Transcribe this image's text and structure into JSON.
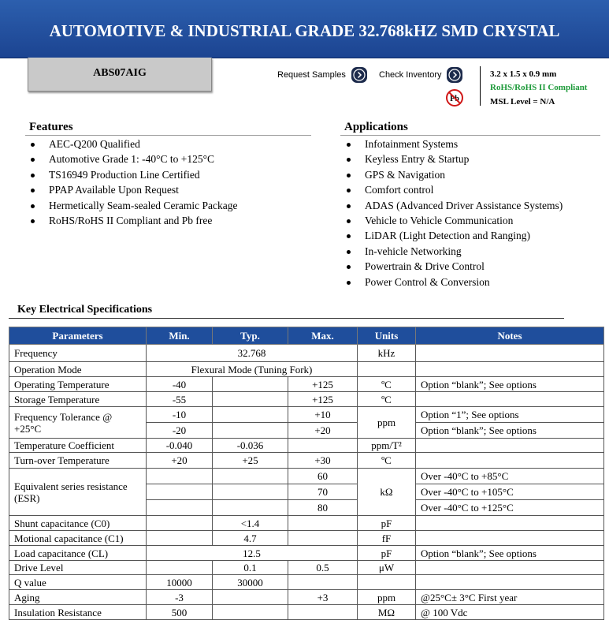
{
  "header": {
    "title": "AUTOMOTIVE & INDUSTRIAL GRADE 32.768kHZ SMD CRYSTAL"
  },
  "part_number": "ABS07AIG",
  "actions": {
    "request_samples": "Request Samples",
    "check_inventory": "Check Inventory"
  },
  "pb_icon": "Pb",
  "specs_summary": [
    "3.2 x 1.5 x 0.9 mm",
    "RoHS/RoHS II Compliant",
    "MSL Level = N/A"
  ],
  "features": {
    "title": "Features",
    "items": [
      "AEC-Q200 Qualified",
      "Automotive Grade 1: -40°C to +125°C",
      "TS16949 Production Line Certified",
      "PPAP Available Upon Request",
      "Hermetically Seam-sealed Ceramic Package",
      "RoHS/RoHS II Compliant and Pb free"
    ]
  },
  "applications": {
    "title": "Applications",
    "items": [
      "Infotainment Systems",
      "Keyless Entry & Startup",
      "GPS & Navigation",
      "Comfort control",
      "ADAS (Advanced Driver Assistance Systems)",
      "Vehicle to Vehicle Communication",
      "LiDAR (Light Detection and Ranging)",
      "In-vehicle Networking",
      "Powertrain & Drive Control",
      "Power Control & Conversion"
    ]
  },
  "spec_table": {
    "title": "Key Electrical Specifications",
    "columns": [
      "Parameters",
      "Min.",
      "Typ.",
      "Max.",
      "Units",
      "Notes"
    ],
    "rows": [
      {
        "parameter": "Frequency",
        "typ": "32.768",
        "unit": "kHz"
      },
      {
        "parameter": "Operation Mode",
        "typ": "Flexural Mode (Tuning Fork)"
      },
      {
        "parameter": "Operating Temperature",
        "min": "-40",
        "max": "+125",
        "unit": "ºC",
        "note": "Option “blank”; See options"
      },
      {
        "parameter": "Storage Temperature",
        "min": "-55",
        "max": "+125",
        "unit": "ºC"
      },
      {
        "parameter": "Frequency Tolerance @ +25°C",
        "unit": "ppm",
        "lines": [
          {
            "min": "-10",
            "max": "+10",
            "note": "Option “1”; See options"
          },
          {
            "min": "-20",
            "max": "+20",
            "note": "Option “blank”; See options"
          }
        ]
      },
      {
        "parameter": "Temperature Coefficient",
        "min": "-0.040",
        "typ": "-0.036",
        "unit": "ppm/T²"
      },
      {
        "parameter": "Turn-over Temperature",
        "min": "+20",
        "typ": "+25",
        "max": "+30",
        "unit": "ºC"
      },
      {
        "parameter": "Equivalent series resistance (ESR)",
        "unit": "kΩ",
        "lines": [
          {
            "max": "60",
            "note": "Over -40°C to +85°C"
          },
          {
            "max": "70",
            "note": "Over -40°C to +105°C"
          },
          {
            "max": "80",
            "note": "Over -40°C to +125°C"
          }
        ]
      },
      {
        "parameter": "Shunt capacitance (C0)",
        "typ": "<1.4",
        "unit": "pF"
      },
      {
        "parameter": "Motional capacitance (C1)",
        "typ": "4.7",
        "unit": "fF"
      },
      {
        "parameter": "Load capacitance (CL)",
        "typ": "12.5",
        "unit": "pF",
        "note": "Option “blank”; See options"
      },
      {
        "parameter": "Drive Level",
        "typ": "0.1",
        "max": "0.5",
        "unit": "μW"
      },
      {
        "parameter": "Q value",
        "min": "10000",
        "typ": "30000"
      },
      {
        "parameter": "Aging",
        "min": "-3",
        "max": "+3",
        "unit": "ppm",
        "note": "@25°C± 3°C First year"
      },
      {
        "parameter": "Insulation Resistance",
        "min": "500",
        "unit": "MΩ",
        "note": "@ 100 Vdc"
      }
    ]
  }
}
